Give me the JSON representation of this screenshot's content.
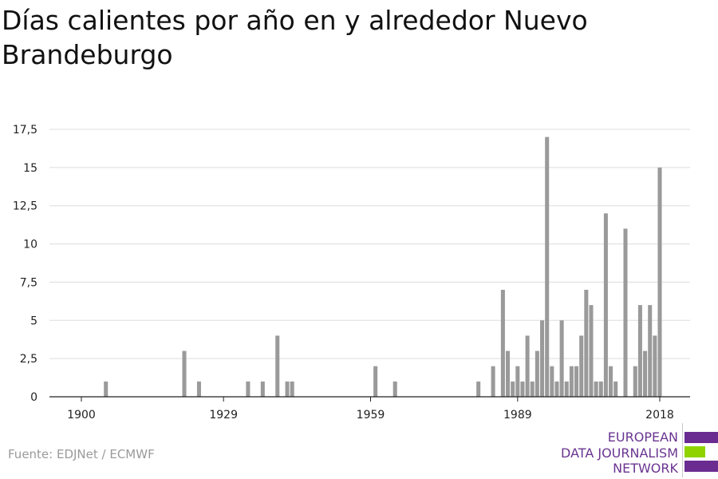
{
  "title": "Días calientes por año en y alrededor Nuevo Brandeburgo",
  "source": "Fuente: EDJNet / ECMWF",
  "logo": {
    "line1": "EUROPEAN",
    "line2": "DATA JOURNALISM",
    "line3": "NETWORK",
    "colors": [
      "#6a2c91",
      "#8fd400",
      "#6a2c91"
    ]
  },
  "colors": {
    "bar": "#9a9a9a",
    "grid": "#dddddd",
    "axis": "#222222"
  },
  "chart_data": {
    "type": "bar",
    "xlabel": "",
    "ylabel": "",
    "ylim": [
      0,
      17.5
    ],
    "yticks": [
      0,
      2.5,
      5,
      7.5,
      10,
      12.5,
      15,
      17.5
    ],
    "ytick_labels": [
      "0",
      "2,5",
      "5",
      "7,5",
      "10",
      "12,5",
      "15",
      "17,5"
    ],
    "xticks": [
      1900,
      1929,
      1959,
      1989,
      2018
    ],
    "xlim": [
      1895,
      2022
    ],
    "x": [
      1905,
      1921,
      1924,
      1934,
      1937,
      1940,
      1942,
      1943,
      1960,
      1964,
      1981,
      1984,
      1986,
      1987,
      1988,
      1989,
      1990,
      1991,
      1992,
      1993,
      1994,
      1995,
      1996,
      1997,
      1998,
      1999,
      2000,
      2001,
      2002,
      2003,
      2004,
      2005,
      2006,
      2007,
      2008,
      2009,
      2011,
      2013,
      2014,
      2015,
      2016,
      2017,
      2018
    ],
    "values": [
      1,
      3,
      1,
      1,
      1,
      4,
      1,
      1,
      2,
      1,
      1,
      2,
      7,
      3,
      1,
      2,
      1,
      4,
      1,
      3,
      5,
      17,
      2,
      1,
      5,
      1,
      2,
      2,
      4,
      7,
      6,
      1,
      1,
      12,
      2,
      1,
      11,
      2,
      6,
      3,
      6,
      4,
      15
    ]
  }
}
